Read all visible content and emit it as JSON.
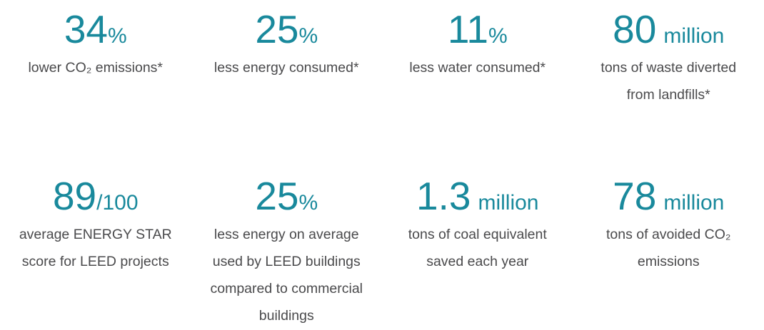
{
  "page": {
    "background": "#ffffff"
  },
  "colors": {
    "accent_teal": "#19899c",
    "text_gray": "#4a4a4c"
  },
  "stats": [
    {
      "value": "34",
      "suffix": "%",
      "caption_lines": [
        "lower CO₂ emissions*"
      ]
    },
    {
      "value": "25",
      "suffix": "%",
      "caption_lines": [
        "less energy consumed*"
      ]
    },
    {
      "value": "11",
      "suffix": "%",
      "caption_lines": [
        "less water consumed*"
      ]
    },
    {
      "value": "80",
      "suffix": "million",
      "caption_lines": [
        "tons of waste diverted",
        "from landfills*"
      ]
    },
    {
      "value": "89",
      "suffix": "/100",
      "caption_lines": [
        "average ENERGY STAR",
        "score for LEED projects"
      ]
    },
    {
      "value": "25",
      "suffix": "%",
      "caption_lines": [
        "less energy on average",
        "used by LEED buildings",
        "compared to commercial",
        "buildings"
      ]
    },
    {
      "value": "1.3",
      "suffix": "million",
      "caption_lines": [
        "tons of coal equivalent",
        "saved each year"
      ]
    },
    {
      "value": "78",
      "suffix": "million",
      "caption_lines": [
        "tons of avoided CO₂",
        "emissions"
      ]
    }
  ]
}
